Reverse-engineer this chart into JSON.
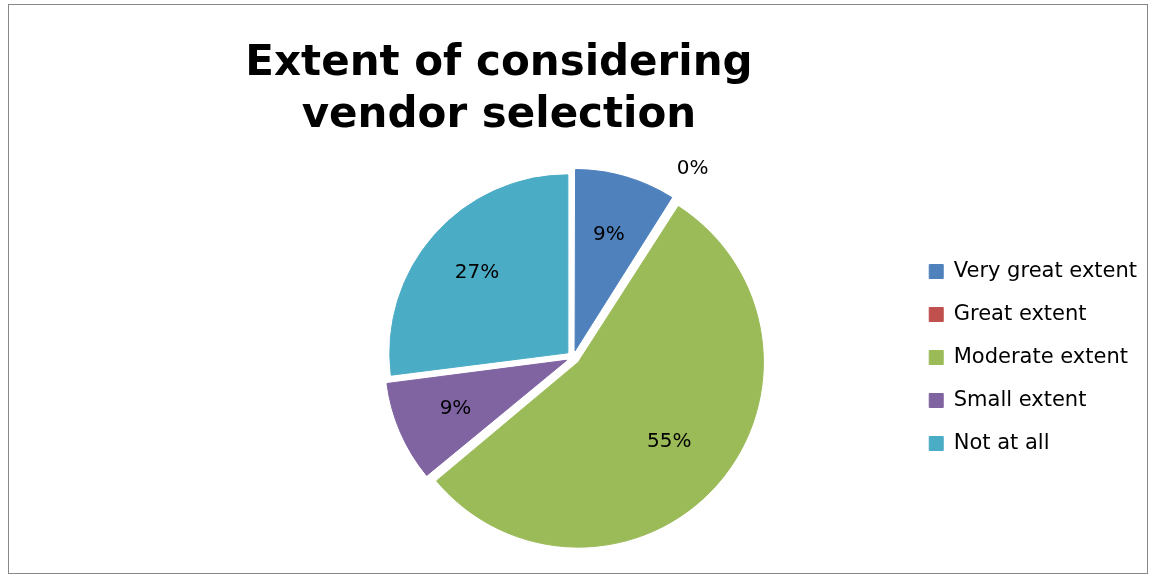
{
  "chart_data": {
    "type": "pie",
    "title": "Extent of considering vendor selection",
    "categories": [
      "Very great extent",
      "Great extent",
      "Moderate extent",
      "Small extent",
      "Not at all"
    ],
    "values": [
      9,
      0,
      55,
      9,
      27
    ],
    "value_labels": [
      "9%",
      "0%",
      "55%",
      "9%",
      "27%"
    ],
    "colors": [
      "#4f81bd",
      "#c0504d",
      "#9bbb59",
      "#8064a2",
      "#4bacc6"
    ],
    "legend": "right"
  }
}
